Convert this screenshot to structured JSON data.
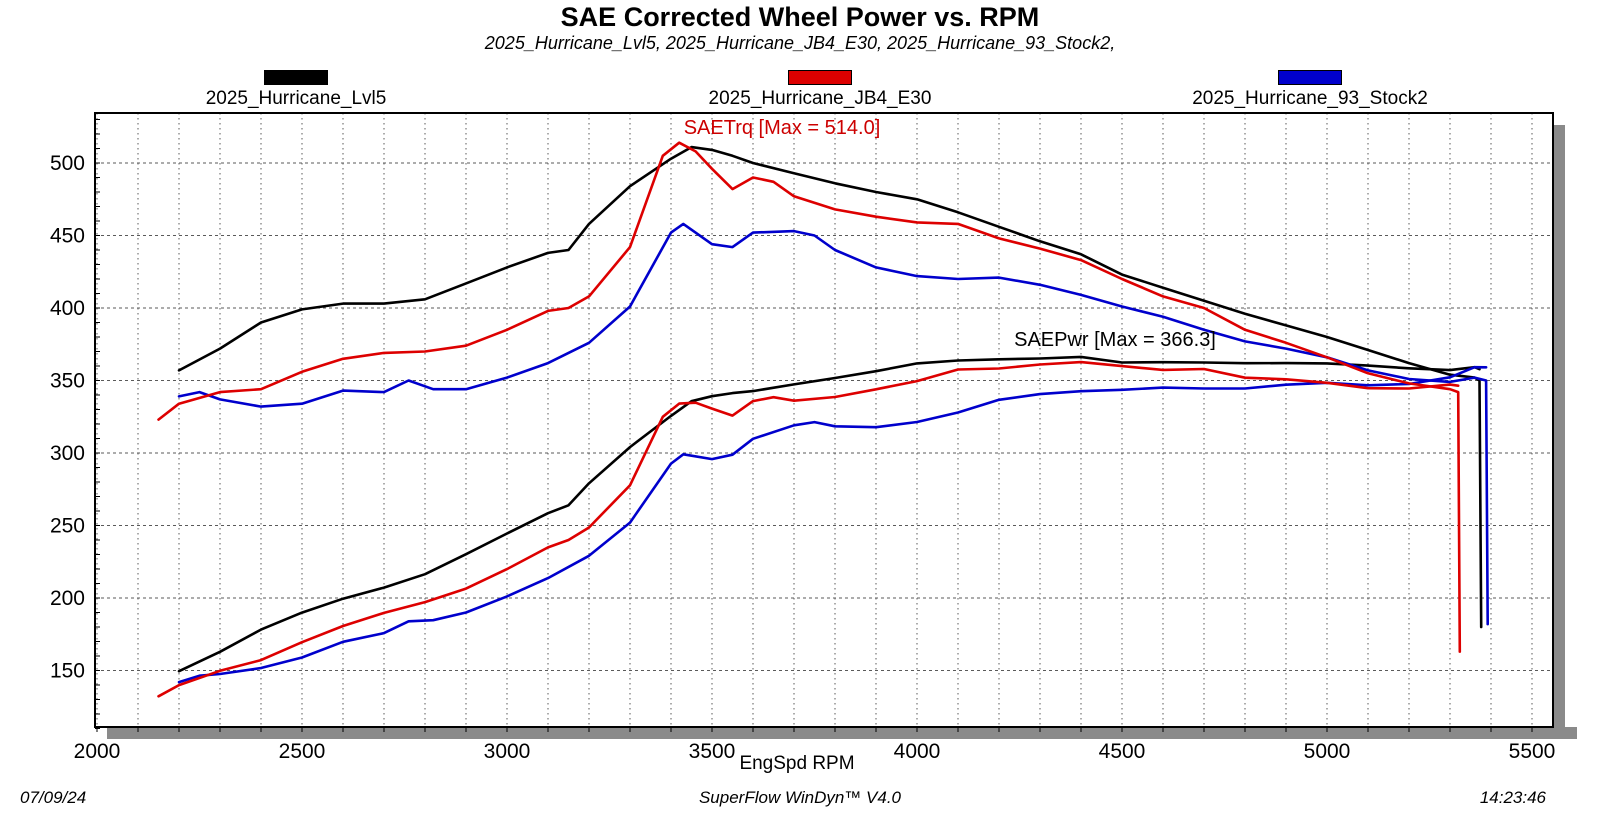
{
  "title": "SAE Corrected Wheel Power vs. RPM",
  "subtitle": "2025_Hurricane_Lvl5, 2025_Hurricane_JB4_E30, 2025_Hurricane_93_Stock2,",
  "legend": [
    {
      "label": "2025_Hurricane_Lvl5",
      "color": "#000000"
    },
    {
      "label": "2025_Hurricane_JB4_E30",
      "color": "#dd0000"
    },
    {
      "label": "2025_Hurricane_93_Stock2",
      "color": "#0000cc"
    }
  ],
  "annotations": {
    "torque_max_label": "SAETrq [Max = 514.0]",
    "power_max_label": "SAEPwr [Max = 366.3]"
  },
  "axis": {
    "x_label": "EngSpd RPM"
  },
  "footer": {
    "date": "07/09/24",
    "app": "SuperFlow WinDyn™ V4.0",
    "time": "14:23:46"
  },
  "chart_data": {
    "type": "line",
    "title": "SAE Corrected Wheel Power vs. RPM",
    "xlabel": "EngSpd RPM",
    "ylabel": "",
    "x_ticks": [
      2000,
      2500,
      3000,
      3500,
      4000,
      4500,
      5000,
      5500
    ],
    "y_ticks": [
      150,
      200,
      250,
      300,
      350,
      400,
      450,
      500
    ],
    "x_range": [
      1995,
      5551
    ],
    "y_range": [
      110,
      534
    ],
    "grid": "dotted; vertical minor gridlines every 100 RPM, horizontal every 50",
    "legend_position": "top",
    "colors": {
      "grid": "#5a5a5a",
      "shadow": "#8a8a8a",
      "axis": "#000000"
    },
    "torque_max": 514.0,
    "power_max": 366.3,
    "series": [
      {
        "name": "2025_Hurricane_Lvl5",
        "color": "#000000",
        "torque": [
          [
            2200,
            357
          ],
          [
            2300,
            372
          ],
          [
            2400,
            390
          ],
          [
            2500,
            399
          ],
          [
            2600,
            403
          ],
          [
            2700,
            403
          ],
          [
            2800,
            406
          ],
          [
            2900,
            417
          ],
          [
            3000,
            428
          ],
          [
            3100,
            438
          ],
          [
            3150,
            440
          ],
          [
            3200,
            458
          ],
          [
            3300,
            484
          ],
          [
            3400,
            503
          ],
          [
            3450,
            511
          ],
          [
            3500,
            509
          ],
          [
            3550,
            505
          ],
          [
            3600,
            500
          ],
          [
            3700,
            493
          ],
          [
            3800,
            486
          ],
          [
            3900,
            480
          ],
          [
            4000,
            475
          ],
          [
            4100,
            466
          ],
          [
            4200,
            456
          ],
          [
            4300,
            446
          ],
          [
            4400,
            437
          ],
          [
            4500,
            423
          ],
          [
            4600,
            414
          ],
          [
            4700,
            405
          ],
          [
            4800,
            396
          ],
          [
            4900,
            388
          ],
          [
            5000,
            380
          ],
          [
            5100,
            371
          ],
          [
            5200,
            362
          ],
          [
            5300,
            354
          ],
          [
            5360,
            352
          ],
          [
            5372,
            350
          ],
          [
            5376,
            180
          ]
        ],
        "power": [
          [
            2200,
            149.5
          ],
          [
            2300,
            162.9
          ],
          [
            2400,
            178.2
          ],
          [
            2500,
            189.9
          ],
          [
            2600,
            199.5
          ],
          [
            2700,
            207.2
          ],
          [
            2800,
            216.4
          ],
          [
            2900,
            230.2
          ],
          [
            3000,
            244.5
          ],
          [
            3100,
            258.5
          ],
          [
            3150,
            263.9
          ],
          [
            3200,
            279.1
          ],
          [
            3300,
            304.1
          ],
          [
            3400,
            325.6
          ],
          [
            3450,
            335.7
          ],
          [
            3500,
            339.2
          ],
          [
            3550,
            341.3
          ],
          [
            3600,
            342.7
          ],
          [
            3700,
            347.3
          ],
          [
            3800,
            351.7
          ],
          [
            3900,
            356.4
          ],
          [
            4000,
            361.8
          ],
          [
            4100,
            363.8
          ],
          [
            4200,
            364.6
          ],
          [
            4300,
            365.2
          ],
          [
            4400,
            366.3
          ],
          [
            4500,
            362.4
          ],
          [
            4600,
            362.6
          ],
          [
            4700,
            362.4
          ],
          [
            4800,
            361.9
          ],
          [
            4900,
            362.0
          ],
          [
            5000,
            361.8
          ],
          [
            5100,
            360.3
          ],
          [
            5200,
            358.4
          ],
          [
            5300,
            357.2
          ],
          [
            5360,
            359.2
          ],
          [
            5372,
            357.8
          ]
        ]
      },
      {
        "name": "2025_Hurricane_93_Stock2",
        "color": "#0000cc",
        "torque": [
          [
            2200,
            339
          ],
          [
            2250,
            342
          ],
          [
            2300,
            337
          ],
          [
            2400,
            332
          ],
          [
            2500,
            334
          ],
          [
            2600,
            343
          ],
          [
            2700,
            342
          ],
          [
            2760,
            350
          ],
          [
            2820,
            344
          ],
          [
            2900,
            344
          ],
          [
            3000,
            352
          ],
          [
            3100,
            362
          ],
          [
            3200,
            376
          ],
          [
            3300,
            401
          ],
          [
            3400,
            452
          ],
          [
            3430,
            458
          ],
          [
            3500,
            444
          ],
          [
            3550,
            442
          ],
          [
            3600,
            452
          ],
          [
            3700,
            453
          ],
          [
            3750,
            450
          ],
          [
            3800,
            440
          ],
          [
            3900,
            428
          ],
          [
            4000,
            422
          ],
          [
            4100,
            420
          ],
          [
            4200,
            421
          ],
          [
            4300,
            416
          ],
          [
            4400,
            409
          ],
          [
            4500,
            401
          ],
          [
            4600,
            394
          ],
          [
            4700,
            385
          ],
          [
            4800,
            377
          ],
          [
            4900,
            372
          ],
          [
            5000,
            366
          ],
          [
            5100,
            357
          ],
          [
            5200,
            351
          ],
          [
            5300,
            349
          ],
          [
            5360,
            352
          ],
          [
            5388,
            350
          ],
          [
            5392,
            182
          ]
        ],
        "power": [
          [
            2200,
            142.0
          ],
          [
            2250,
            146.4
          ],
          [
            2300,
            147.6
          ],
          [
            2400,
            151.7
          ],
          [
            2500,
            159.0
          ],
          [
            2600,
            169.8
          ],
          [
            2700,
            175.8
          ],
          [
            2760,
            183.9
          ],
          [
            2820,
            184.7
          ],
          [
            2900,
            190.0
          ],
          [
            3000,
            201.1
          ],
          [
            3100,
            213.7
          ],
          [
            3200,
            229.1
          ],
          [
            3300,
            252.0
          ],
          [
            3400,
            292.7
          ],
          [
            3430,
            299.1
          ],
          [
            3500,
            295.8
          ],
          [
            3550,
            298.8
          ],
          [
            3600,
            309.8
          ],
          [
            3700,
            319.1
          ],
          [
            3750,
            321.3
          ],
          [
            3800,
            318.4
          ],
          [
            3900,
            317.8
          ],
          [
            4000,
            321.4
          ],
          [
            4100,
            327.9
          ],
          [
            4200,
            336.7
          ],
          [
            4300,
            340.6
          ],
          [
            4400,
            342.6
          ],
          [
            4500,
            343.6
          ],
          [
            4600,
            345.1
          ],
          [
            4700,
            344.5
          ],
          [
            4800,
            344.5
          ],
          [
            4900,
            347.1
          ],
          [
            5000,
            348.4
          ],
          [
            5100,
            346.7
          ],
          [
            5200,
            347.6
          ],
          [
            5300,
            352.2
          ],
          [
            5360,
            359.2
          ],
          [
            5388,
            359.1
          ]
        ]
      },
      {
        "name": "2025_Hurricane_JB4_E30",
        "color": "#dd0000",
        "torque": [
          [
            2150,
            323
          ],
          [
            2200,
            334
          ],
          [
            2300,
            342
          ],
          [
            2400,
            344
          ],
          [
            2500,
            356
          ],
          [
            2600,
            365
          ],
          [
            2700,
            369
          ],
          [
            2800,
            370
          ],
          [
            2900,
            374
          ],
          [
            3000,
            385
          ],
          [
            3100,
            398
          ],
          [
            3150,
            400
          ],
          [
            3200,
            408
          ],
          [
            3300,
            442
          ],
          [
            3380,
            505
          ],
          [
            3420,
            514
          ],
          [
            3460,
            508
          ],
          [
            3500,
            496
          ],
          [
            3550,
            482
          ],
          [
            3600,
            490
          ],
          [
            3650,
            487
          ],
          [
            3700,
            477
          ],
          [
            3800,
            468
          ],
          [
            3900,
            463
          ],
          [
            4000,
            459
          ],
          [
            4100,
            458
          ],
          [
            4200,
            448
          ],
          [
            4300,
            441
          ],
          [
            4400,
            433
          ],
          [
            4500,
            420
          ],
          [
            4600,
            408
          ],
          [
            4700,
            400
          ],
          [
            4800,
            385
          ],
          [
            4900,
            376
          ],
          [
            5000,
            366
          ],
          [
            5100,
            355
          ],
          [
            5200,
            348
          ],
          [
            5300,
            344
          ],
          [
            5320,
            342
          ],
          [
            5324,
            163
          ]
        ],
        "power": [
          [
            2150,
            132.2
          ],
          [
            2200,
            139.9
          ],
          [
            2300,
            149.8
          ],
          [
            2400,
            157.2
          ],
          [
            2500,
            169.5
          ],
          [
            2600,
            180.7
          ],
          [
            2700,
            189.7
          ],
          [
            2800,
            197.2
          ],
          [
            2900,
            206.5
          ],
          [
            3000,
            219.9
          ],
          [
            3100,
            234.9
          ],
          [
            3150,
            240.0
          ],
          [
            3200,
            248.6
          ],
          [
            3300,
            277.7
          ],
          [
            3380,
            325.0
          ],
          [
            3420,
            334.1
          ],
          [
            3460,
            334.7
          ],
          [
            3500,
            330.6
          ],
          [
            3550,
            325.8
          ],
          [
            3600,
            335.8
          ],
          [
            3650,
            338.5
          ],
          [
            3700,
            336.1
          ],
          [
            3800,
            338.6
          ],
          [
            3900,
            343.9
          ],
          [
            4000,
            349.6
          ],
          [
            4100,
            357.6
          ],
          [
            4200,
            358.3
          ],
          [
            4300,
            361.0
          ],
          [
            4400,
            362.7
          ],
          [
            4500,
            359.9
          ],
          [
            4600,
            357.3
          ],
          [
            4700,
            357.9
          ],
          [
            4800,
            351.9
          ],
          [
            4900,
            350.8
          ],
          [
            5000,
            348.4
          ],
          [
            5100,
            344.7
          ],
          [
            5200,
            344.5
          ],
          [
            5300,
            347.2
          ],
          [
            5320,
            346.4
          ]
        ]
      }
    ]
  }
}
